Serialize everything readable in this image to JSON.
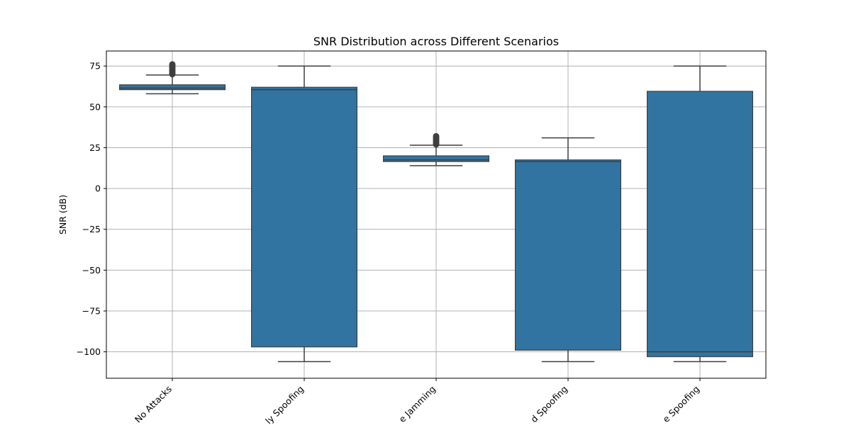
{
  "chart_data": {
    "type": "box",
    "title": "SNR Distribution across Different Scenarios",
    "xlabel": "",
    "ylabel": "SNR (dB)",
    "ylim": [
      -116.2,
      84.2
    ],
    "yticks": [
      75,
      50,
      25,
      0,
      -25,
      -50,
      -75,
      -100
    ],
    "ytick_labels": [
      "75",
      "50",
      "25",
      "0",
      "−25",
      "−50",
      "−75",
      "−100"
    ],
    "grid": true,
    "box_color": "#3274a1",
    "categories": [
      "No Attacks",
      "ly Spoofing",
      "e Jamming",
      "d Spoofing",
      "e Spoofing"
    ],
    "boxes": [
      {
        "min": 58,
        "q1": 60.5,
        "median": 61.5,
        "q3": 63.5,
        "max": 69.5,
        "outliers": [
          70,
          71,
          72,
          73,
          74,
          75,
          76
        ]
      },
      {
        "min": -106,
        "q1": -97,
        "median": 60.5,
        "q3": 62,
        "max": 75,
        "outliers": []
      },
      {
        "min": 14,
        "q1": 16.5,
        "median": 17.5,
        "q3": 20,
        "max": 26.5,
        "outliers": [
          27,
          28,
          29,
          30,
          31,
          32
        ]
      },
      {
        "min": -106,
        "q1": -99,
        "median": 16.5,
        "q3": 17.5,
        "max": 31,
        "outliers": []
      },
      {
        "min": -106,
        "q1": -103,
        "median": -100,
        "q3": 59.5,
        "max": 75,
        "outliers": []
      }
    ]
  }
}
